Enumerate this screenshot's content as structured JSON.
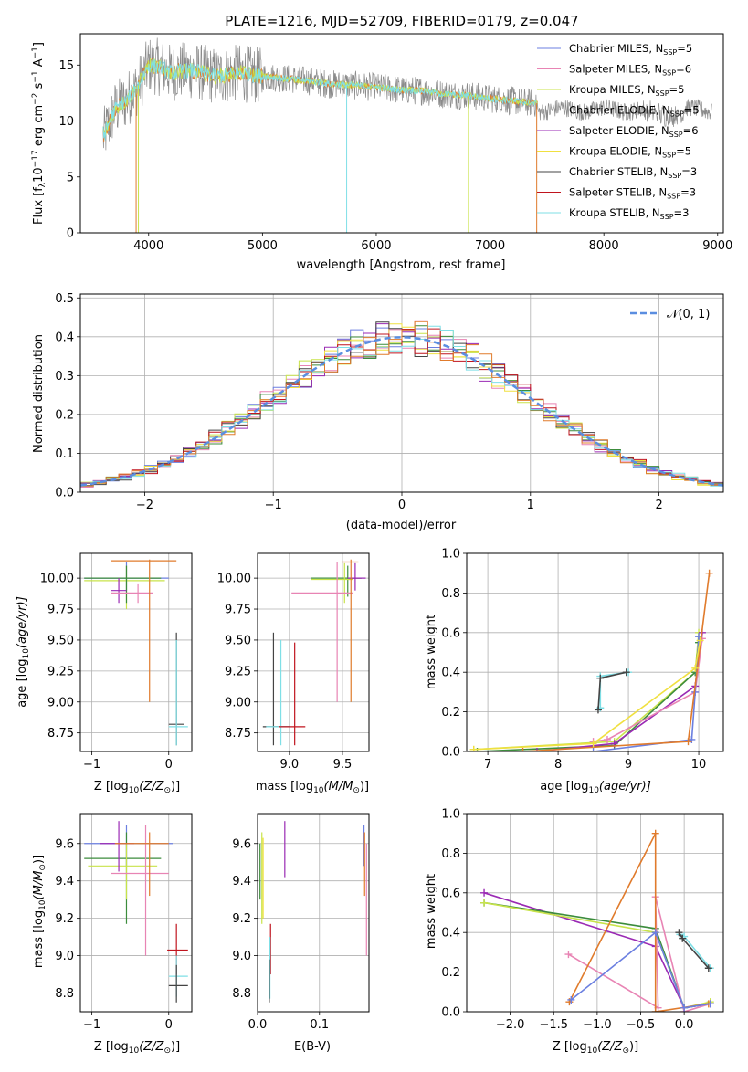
{
  "title": "PLATE=1216, MJD=52709, FIBERID=0179, z=0.047",
  "colors": {
    "Chabrier MILES": "#6b7fe0",
    "Salpeter MILES": "#e884b4",
    "Kroupa MILES": "#c8e34a",
    "Chabrier ELODIE": "#3c8c3c",
    "Salpeter ELODIE": "#9a2ab4",
    "Kroupa ELODIE": "#f0e040",
    "Chabrier STELIB": "#444444",
    "Salpeter STELIB": "#c0141e",
    "Kroupa STELIB": "#7fdfe6",
    "fit_orange": "#e07b2c",
    "data_gray": "#8a8a8a",
    "normal_dashed": "#5b8ee0"
  },
  "chart_data": [
    {
      "id": "spectrum",
      "type": "line",
      "xlabel": "wavelength [Angstrom, rest frame]",
      "ylabel": "Flux [f",
      "ylabel_sub": "λ",
      "ylabel_rest": "10",
      "ylabel_exp1": "−17",
      "ylabel_rest2": " erg cm",
      "ylabel_exp2": "−2",
      "ylabel_rest3": " s",
      "ylabel_exp3": "−1",
      "ylabel_rest4": " A",
      "ylabel_exp4": "−1",
      "ylabel_end": "]",
      "xlim": [
        3400,
        9050
      ],
      "ylim": [
        0,
        17.8
      ],
      "xticks": [
        4000,
        5000,
        6000,
        7000,
        8000,
        9000
      ],
      "yticks": [
        0,
        5,
        10,
        15
      ],
      "continuum": {
        "x": [
          3600,
          3700,
          3800,
          3900,
          4000,
          4100,
          4200,
          4300,
          4400,
          4600,
          4800,
          5000,
          5200,
          5400,
          5600,
          5800,
          6000,
          6200,
          6400,
          6600,
          6800,
          7000,
          7200,
          7400
        ],
        "y": [
          8.5,
          11.0,
          11.8,
          13.0,
          15.0,
          14.8,
          14.3,
          14.5,
          14.5,
          14.0,
          14.3,
          14.0,
          13.8,
          13.6,
          13.3,
          13.2,
          13.0,
          12.8,
          12.7,
          12.4,
          12.3,
          12.0,
          11.8,
          11.6
        ]
      },
      "legend": [
        {
          "name": "Chabrier MILES",
          "n": "5"
        },
        {
          "name": "Salpeter MILES",
          "n": "6"
        },
        {
          "name": "Kroupa MILES",
          "n": "5"
        },
        {
          "name": "Chabrier ELODIE",
          "n": "5"
        },
        {
          "name": "Salpeter ELODIE",
          "n": "6"
        },
        {
          "name": "Kroupa ELODIE",
          "n": "5"
        },
        {
          "name": "Chabrier STELIB",
          "n": "3"
        },
        {
          "name": "Salpeter STELIB",
          "n": "3"
        },
        {
          "name": "Kroupa STELIB",
          "n": "3"
        }
      ],
      "legend_prefix": "N",
      "legend_sub": "SSP"
    },
    {
      "id": "residuals",
      "type": "area",
      "xlabel": "(data-model)/error",
      "ylabel": "Normed distribution",
      "xlim": [
        -2.5,
        2.5
      ],
      "ylim": [
        0,
        0.51
      ],
      "xticks": [
        -2,
        -1,
        0,
        1,
        2
      ],
      "yticks": [
        0.0,
        0.1,
        0.2,
        0.3,
        0.4,
        0.5
      ],
      "bin_width": 0.1,
      "legend": "𝒩(0, 1)"
    },
    {
      "id": "age-Z",
      "type": "scatter",
      "xlabel": "Z [log",
      "xlabel_sub": "10",
      "xlabel_rest": "(Z/Z",
      "xlabel_sun": "⊙",
      "xlabel_end": ")]",
      "ylabel": "age  [log",
      "ylabel_sub": "10",
      "ylabel_rest": "(age/yr)]",
      "xlim": [
        -1.15,
        0.3
      ],
      "ylim": [
        8.6,
        10.2
      ],
      "xticks": [
        -1,
        0
      ],
      "yticks": [
        8.75,
        9.0,
        9.25,
        9.5,
        9.75,
        10.0
      ],
      "crosses": [
        {
          "c": "Chabrier MILES",
          "x": -0.55,
          "xe": [
            -1.1,
            0.0
          ],
          "y": 10.0,
          "ye": [
            9.9,
            10.13
          ]
        },
        {
          "c": "Kroupa MILES",
          "x": -0.55,
          "xe": [
            -1.1,
            -0.05
          ],
          "y": 9.98,
          "ye": [
            9.75,
            10.1
          ]
        },
        {
          "c": "Chabrier ELODIE",
          "x": -0.55,
          "xe": [
            -1.1,
            -0.1
          ],
          "y": 10.0,
          "ye": [
            9.8,
            10.1
          ]
        },
        {
          "c": "Salpeter ELODIE",
          "x": -0.65,
          "xe": [
            -0.75,
            -0.55
          ],
          "y": 9.9,
          "ye": [
            9.8,
            10.0
          ]
        },
        {
          "c": "Salpeter MILES",
          "x": -0.4,
          "xe": [
            -0.75,
            -0.2
          ],
          "y": 9.88,
          "ye": [
            9.8,
            9.95
          ]
        },
        {
          "c": "fit_orange",
          "x": -0.25,
          "xe": [
            -0.75,
            0.1
          ],
          "y": 10.14,
          "ye": [
            9.0,
            10.15
          ]
        },
        {
          "c": "Chabrier STELIB",
          "x": 0.1,
          "xe": [
            0.0,
            0.2
          ],
          "y": 8.82,
          "ye": [
            8.65,
            9.56
          ]
        },
        {
          "c": "Kroupa STELIB",
          "x": 0.1,
          "xe": [
            0.0,
            0.25
          ],
          "y": 8.8,
          "ye": [
            8.65,
            9.5
          ]
        }
      ]
    },
    {
      "id": "age-mass",
      "type": "scatter",
      "xlabel": "mass [log",
      "xlabel_sub": "10",
      "xlabel_rest": "(M/M",
      "xlabel_sun": "⊙",
      "xlabel_end": ")]",
      "xlim": [
        8.7,
        9.75
      ],
      "ylim": [
        8.6,
        10.2
      ],
      "xticks": [
        9.0,
        9.5
      ],
      "yticks": [
        8.75,
        9.0,
        9.25,
        9.5,
        9.75,
        10.0
      ],
      "crosses": [
        {
          "c": "Chabrier ELODIE",
          "x": 9.55,
          "xe": [
            9.2,
            9.68
          ],
          "y": 10.0,
          "ye": [
            9.85,
            10.1
          ]
        },
        {
          "c": "Kroupa MILES",
          "x": 9.52,
          "xe": [
            9.2,
            9.6
          ],
          "y": 9.99,
          "ye": [
            9.8,
            10.12
          ]
        },
        {
          "c": "Salpeter ELODIE",
          "x": 9.62,
          "xe": [
            9.55,
            9.72
          ],
          "y": 10.0,
          "ye": [
            9.9,
            10.12
          ]
        },
        {
          "c": "Salpeter MILES",
          "x": 9.45,
          "xe": [
            9.02,
            9.6
          ],
          "y": 9.88,
          "ye": [
            9.0,
            10.13
          ]
        },
        {
          "c": "fit_orange",
          "x": 9.58,
          "xe": [
            9.5,
            9.65
          ],
          "y": 10.13,
          "ye": [
            9.0,
            10.15
          ]
        },
        {
          "c": "Chabrier STELIB",
          "x": 8.85,
          "xe": [
            8.75,
            9.0
          ],
          "y": 8.8,
          "ye": [
            8.65,
            9.56
          ]
        },
        {
          "c": "Kroupa STELIB",
          "x": 8.92,
          "xe": [
            8.78,
            9.0
          ],
          "y": 8.8,
          "ye": [
            8.65,
            9.5
          ]
        },
        {
          "c": "Salpeter STELIB",
          "x": 9.05,
          "xe": [
            8.9,
            9.15
          ],
          "y": 8.8,
          "ye": [
            8.65,
            9.48
          ]
        }
      ]
    },
    {
      "id": "weight-age",
      "type": "line",
      "xlabel": "age  [log",
      "xlabel_sub": "10",
      "xlabel_rest": "(age/yr)]",
      "ylabel": "mass weight",
      "xlim": [
        6.7,
        10.35
      ],
      "ylim": [
        0,
        1.0
      ],
      "xticks": [
        7,
        8,
        9,
        10
      ],
      "yticks": [
        0.0,
        0.2,
        0.4,
        0.6,
        0.8,
        1.0
      ],
      "series": [
        {
          "c": "Kroupa STELIB",
          "x": [
            8.6,
            8.6,
            9.0
          ],
          "y": [
            0.22,
            0.38,
            0.4
          ]
        },
        {
          "c": "Chabrier STELIB",
          "x": [
            8.57,
            8.6,
            8.97
          ],
          "y": [
            0.21,
            0.37,
            0.4
          ]
        },
        {
          "c": "Kroupa MILES",
          "x": [
            6.8,
            8.8,
            9.95,
            10.0
          ],
          "y": [
            0.01,
            0.05,
            0.4,
            0.6
          ]
        },
        {
          "c": "Chabrier ELODIE",
          "x": [
            6.85,
            8.8,
            9.95,
            10.0
          ],
          "y": [
            0.0,
            0.03,
            0.4,
            0.55
          ]
        },
        {
          "c": "Salpeter ELODIE",
          "x": [
            7.7,
            8.8,
            9.95,
            10.05
          ],
          "y": [
            0.0,
            0.04,
            0.33,
            0.6
          ]
        },
        {
          "c": "Salpeter MILES",
          "x": [
            8.5,
            8.7,
            9.95,
            10.05
          ],
          "y": [
            0.05,
            0.06,
            0.3,
            0.57
          ]
        },
        {
          "c": "Chabrier MILES",
          "x": [
            8.5,
            9.9,
            9.95,
            10.0
          ],
          "y": [
            0.0,
            0.06,
            0.3,
            0.58
          ]
        },
        {
          "c": "fit_orange",
          "x": [
            7.5,
            9.85,
            10.15
          ],
          "y": [
            0.0,
            0.05,
            0.9
          ]
        },
        {
          "c": "Kroupa ELODIE",
          "x": [
            6.8,
            8.5,
            9.95,
            10.02
          ],
          "y": [
            0.01,
            0.04,
            0.42,
            0.56
          ]
        }
      ]
    },
    {
      "id": "mass-Z",
      "type": "scatter",
      "xlabel": "Z [log",
      "xlabel_sub": "10",
      "xlabel_rest": "(Z/Z",
      "xlabel_sun": "⊙",
      "xlabel_end": ")]",
      "ylabel": "mass [log",
      "ylabel_sub": "10",
      "ylabel_rest": "(M/M",
      "ylabel_sun": "⊙",
      "ylabel_end": ")]",
      "xlim": [
        -1.15,
        0.3
      ],
      "ylim": [
        8.7,
        9.76
      ],
      "xticks": [
        -1,
        0
      ],
      "yticks": [
        8.8,
        9.0,
        9.2,
        9.4,
        9.6
      ],
      "crosses": [
        {
          "c": "Chabrier MILES",
          "x": -0.55,
          "xe": [
            -1.1,
            0.05
          ],
          "y": 9.6,
          "ye": [
            9.48,
            9.7
          ]
        },
        {
          "c": "Chabrier ELODIE",
          "x": -0.55,
          "xe": [
            -1.1,
            -0.1
          ],
          "y": 9.52,
          "ye": [
            9.17,
            9.66
          ]
        },
        {
          "c": "Kroupa MILES",
          "x": -0.55,
          "xe": [
            -1.05,
            -0.15
          ],
          "y": 9.48,
          "ye": [
            9.3,
            9.6
          ]
        },
        {
          "c": "Salpeter ELODIE",
          "x": -0.65,
          "xe": [
            -0.9,
            -0.45
          ],
          "y": 9.6,
          "ye": [
            9.45,
            9.72
          ]
        },
        {
          "c": "Salpeter MILES",
          "x": -0.3,
          "xe": [
            -0.75,
            0.0
          ],
          "y": 9.44,
          "ye": [
            9.0,
            9.7
          ]
        },
        {
          "c": "fit_orange",
          "x": -0.25,
          "xe": [
            -0.7,
            0.0
          ],
          "y": 9.6,
          "ye": [
            9.32,
            9.66
          ]
        },
        {
          "c": "Salpeter STELIB",
          "x": 0.1,
          "xe": [
            -0.02,
            0.25
          ],
          "y": 9.03,
          "ye": [
            8.9,
            9.17
          ]
        },
        {
          "c": "Kroupa STELIB",
          "x": 0.1,
          "xe": [
            0.0,
            0.25
          ],
          "y": 8.89,
          "ye": [
            8.78,
            9.0
          ]
        },
        {
          "c": "Chabrier STELIB",
          "x": 0.1,
          "xe": [
            0.0,
            0.25
          ],
          "y": 8.84,
          "ye": [
            8.75,
            8.95
          ]
        }
      ]
    },
    {
      "id": "mass-ebv",
      "type": "scatter",
      "xlabel": "E(B-V)",
      "xlim": [
        0,
        0.18
      ],
      "ylim": [
        8.7,
        9.76
      ],
      "xticks": [
        0.0,
        0.1
      ],
      "yticks": [
        8.8,
        9.0,
        9.2,
        9.4,
        9.6
      ],
      "bars": [
        {
          "c": "Kroupa MILES",
          "x": 0.007,
          "y0": 9.17,
          "y1": 9.66
        },
        {
          "c": "Kroupa ELODIE",
          "x": 0.009,
          "y0": 9.2,
          "y1": 9.63
        },
        {
          "c": "Chabrier ELODIE",
          "x": 0.004,
          "y0": 9.3,
          "y1": 9.6
        },
        {
          "c": "Salpeter ELODIE",
          "x": 0.044,
          "y0": 9.42,
          "y1": 9.72
        },
        {
          "c": "Salpeter STELIB",
          "x": 0.021,
          "y0": 8.9,
          "y1": 9.17
        },
        {
          "c": "Kroupa STELIB",
          "x": 0.02,
          "y0": 8.77,
          "y1": 9.1
        },
        {
          "c": "Chabrier STELIB",
          "x": 0.019,
          "y0": 8.75,
          "y1": 8.98
        },
        {
          "c": "Chabrier MILES",
          "x": 0.172,
          "y0": 9.48,
          "y1": 9.7
        },
        {
          "c": "fit_orange",
          "x": 0.173,
          "y0": 9.32,
          "y1": 9.66
        },
        {
          "c": "Salpeter MILES",
          "x": 0.176,
          "y0": 9.0,
          "y1": 9.6
        }
      ]
    },
    {
      "id": "weight-Z",
      "type": "line",
      "xlabel": "Z [log",
      "xlabel_sub": "10",
      "xlabel_rest": "(Z/Z",
      "xlabel_sun": "⊙",
      "xlabel_end": ")]",
      "ylabel": "mass weight",
      "xlim": [
        -2.5,
        0.45
      ],
      "ylim": [
        0,
        1.0
      ],
      "xticks": [
        -2.0,
        -1.5,
        -1.0,
        -0.5,
        0.0
      ],
      "yticks": [
        0.0,
        0.2,
        0.4,
        0.6,
        0.8,
        1.0
      ],
      "series": [
        {
          "c": "Kroupa STELIB",
          "x": [
            -0.05,
            0.0,
            0.3
          ],
          "y": [
            0.39,
            0.38,
            0.22
          ]
        },
        {
          "c": "Chabrier STELIB",
          "x": [
            -0.06,
            -0.02,
            0.28
          ],
          "y": [
            0.4,
            0.37,
            0.22
          ]
        },
        {
          "c": "Salpeter ELODIE",
          "x": [
            -2.3,
            -0.33,
            0.0,
            0.3
          ],
          "y": [
            0.6,
            0.33,
            0.02,
            0.04
          ]
        },
        {
          "c": "Chabrier ELODIE",
          "x": [
            -2.3,
            -0.33,
            0.0,
            0.3
          ],
          "y": [
            0.55,
            0.42,
            0.02,
            0.04
          ]
        },
        {
          "c": "Kroupa MILES",
          "x": [
            -2.3,
            -0.33,
            0.0,
            0.3
          ],
          "y": [
            0.55,
            0.4,
            0.02,
            0.05
          ]
        },
        {
          "c": "Salpeter MILES",
          "x": [
            -1.33,
            -0.3,
            -0.33,
            0.0,
            0.3
          ],
          "y": [
            0.29,
            0.02,
            0.58,
            0.0,
            0.04
          ]
        },
        {
          "c": "fit_orange",
          "x": [
            -1.32,
            -0.33,
            -0.33,
            0.28
          ],
          "y": [
            0.05,
            0.9,
            0.0,
            0.04
          ]
        },
        {
          "c": "Chabrier MILES",
          "x": [
            -1.3,
            -0.33,
            0.0,
            0.3
          ],
          "y": [
            0.06,
            0.4,
            0.02,
            0.04
          ]
        }
      ]
    }
  ]
}
